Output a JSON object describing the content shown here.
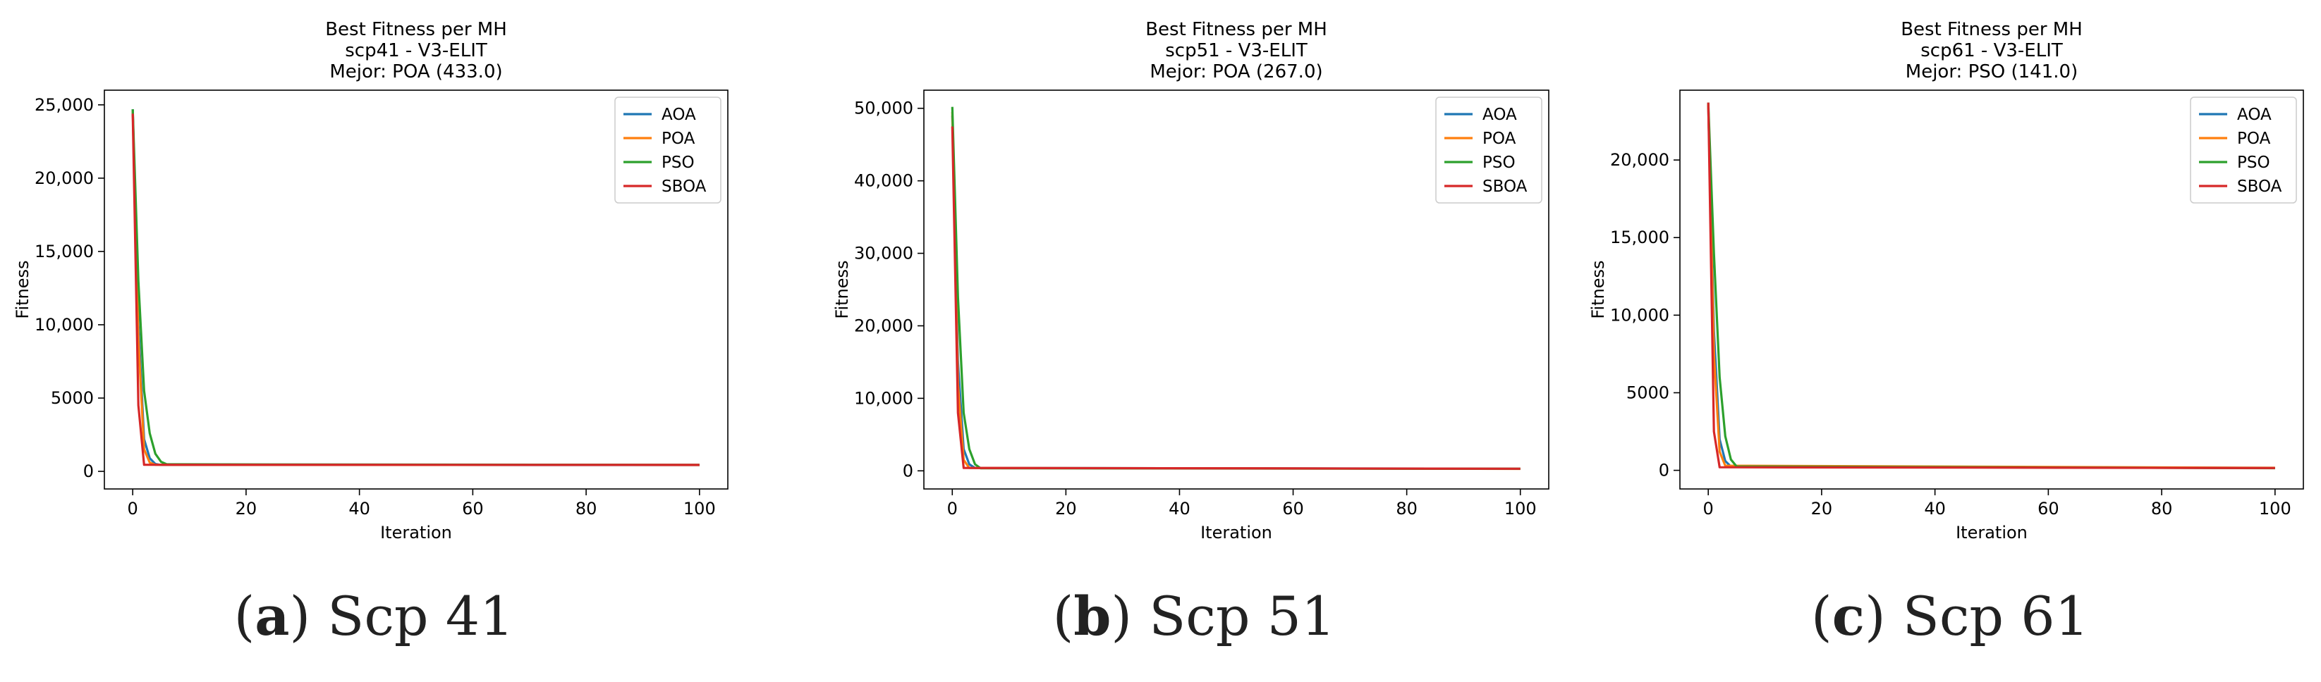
{
  "series_colors": {
    "AOA": "#1f77b4",
    "POA": "#ff7f0e",
    "PSO": "#2ca02c",
    "SBOA": "#d62728"
  },
  "chart_data": [
    {
      "type": "line",
      "title": [
        "Best Fitness per MH",
        "scp41 - V3-ELIT",
        "Mejor: POA (433.0)"
      ],
      "xlabel": "Iteration",
      "ylabel": "Fitness",
      "xlim": [
        -5,
        105
      ],
      "ylim": [
        -1200,
        26000
      ],
      "xticks": [
        0,
        20,
        40,
        60,
        80,
        100
      ],
      "xtick_labels": [
        "0",
        "20",
        "40",
        "60",
        "80",
        "100"
      ],
      "yticks": [
        0,
        5000,
        10000,
        15000,
        20000,
        25000
      ],
      "ytick_labels": [
        "0",
        "5000",
        "10,000",
        "15,000",
        "20,000",
        "25,000"
      ],
      "legend": "upper right",
      "grid": false,
      "series": [
        {
          "name": "AOA",
          "x": [
            0,
            1,
            2,
            3,
            4,
            5,
            100
          ],
          "y": [
            24700,
            10000,
            2200,
            900,
            500,
            440,
            435
          ]
        },
        {
          "name": "POA",
          "x": [
            0,
            1,
            2,
            3,
            4,
            100
          ],
          "y": [
            24600,
            9000,
            1500,
            600,
            450,
            433
          ]
        },
        {
          "name": "PSO",
          "x": [
            0,
            1,
            2,
            3,
            4,
            5,
            6,
            100
          ],
          "y": [
            24700,
            13000,
            5500,
            2600,
            1200,
            650,
            480,
            440
          ]
        },
        {
          "name": "SBOA",
          "x": [
            0,
            1,
            2,
            100
          ],
          "y": [
            24400,
            4500,
            450,
            440
          ]
        }
      ]
    },
    {
      "type": "line",
      "title": [
        "Best Fitness per MH",
        "scp51 - V3-ELIT",
        "Mejor: POA (267.0)"
      ],
      "xlabel": "Iteration",
      "ylabel": "Fitness",
      "xlim": [
        -5,
        105
      ],
      "ylim": [
        -2500,
        52500
      ],
      "xticks": [
        0,
        20,
        40,
        60,
        80,
        100
      ],
      "xtick_labels": [
        "0",
        "20",
        "40",
        "60",
        "80",
        "100"
      ],
      "yticks": [
        0,
        10000,
        20000,
        30000,
        40000,
        50000
      ],
      "ytick_labels": [
        "0",
        "10,000",
        "20,000",
        "30,000",
        "40,000",
        "50,000"
      ],
      "legend": "upper right",
      "grid": false,
      "series": [
        {
          "name": "AOA",
          "x": [
            0,
            1,
            2,
            3,
            4,
            100
          ],
          "y": [
            49000,
            15000,
            3000,
            900,
            400,
            290
          ]
        },
        {
          "name": "POA",
          "x": [
            0,
            1,
            2,
            3,
            100
          ],
          "y": [
            49500,
            12000,
            1500,
            400,
            267
          ]
        },
        {
          "name": "PSO",
          "x": [
            0,
            1,
            2,
            3,
            4,
            5,
            100
          ],
          "y": [
            50200,
            24000,
            8000,
            3000,
            900,
            350,
            280
          ]
        },
        {
          "name": "SBOA",
          "x": [
            0,
            1,
            2,
            100
          ],
          "y": [
            47500,
            8000,
            400,
            290
          ]
        }
      ]
    },
    {
      "type": "line",
      "title": [
        "Best Fitness per MH",
        "scp61 - V3-ELIT",
        "Mejor: PSO (141.0)"
      ],
      "xlabel": "Iteration",
      "ylabel": "Fitness",
      "xlim": [
        -5,
        105
      ],
      "ylim": [
        -1200,
        24500
      ],
      "xticks": [
        0,
        20,
        40,
        60,
        80,
        100
      ],
      "xtick_labels": [
        "0",
        "20",
        "40",
        "60",
        "80",
        "100"
      ],
      "yticks": [
        0,
        5000,
        10000,
        15000,
        20000
      ],
      "ytick_labels": [
        "0",
        "5000",
        "10,000",
        "15,000",
        "20,000"
      ],
      "legend": "upper right",
      "grid": false,
      "series": [
        {
          "name": "AOA",
          "x": [
            0,
            1,
            2,
            3,
            4,
            100
          ],
          "y": [
            23500,
            9000,
            2000,
            600,
            250,
            150
          ]
        },
        {
          "name": "POA",
          "x": [
            0,
            1,
            2,
            3,
            100
          ],
          "y": [
            23600,
            7500,
            1200,
            300,
            160
          ]
        },
        {
          "name": "PSO",
          "x": [
            0,
            1,
            2,
            3,
            4,
            5,
            100
          ],
          "y": [
            23700,
            14000,
            6000,
            2200,
            700,
            250,
            141
          ]
        },
        {
          "name": "SBOA",
          "x": [
            0,
            1,
            2,
            100
          ],
          "y": [
            23700,
            2500,
            200,
            150
          ]
        }
      ]
    }
  ],
  "captions": [
    {
      "letter": "a",
      "text": " Scp 41"
    },
    {
      "letter": "b",
      "text": " Scp 51"
    },
    {
      "letter": "c",
      "text": " Scp 61"
    }
  ]
}
